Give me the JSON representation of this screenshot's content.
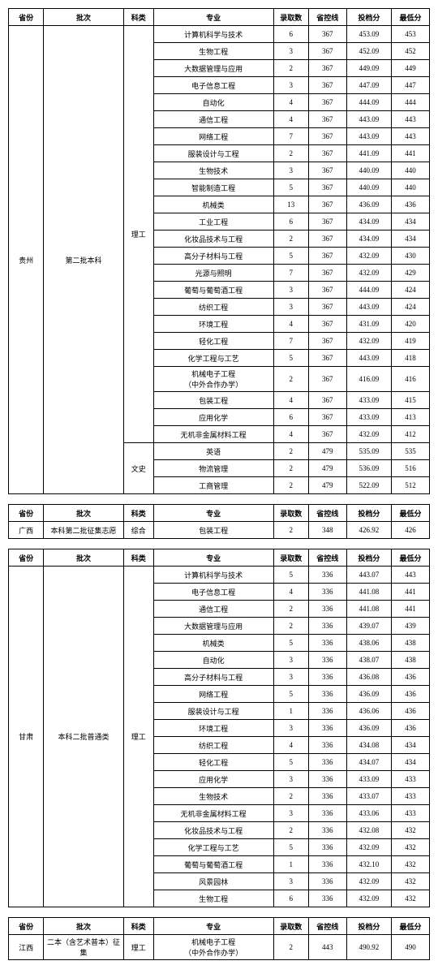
{
  "headers": [
    "省份",
    "批次",
    "科类",
    "专业",
    "录取数",
    "省控线",
    "投档分",
    "最低分"
  ],
  "tables": [
    {
      "province": "贵州",
      "batch": "第二批本科",
      "groups": [
        {
          "type": "理工",
          "rows": [
            [
              "计算机科学与技术",
              "6",
              "367",
              "453.09",
              "453"
            ],
            [
              "生物工程",
              "3",
              "367",
              "452.09",
              "452"
            ],
            [
              "大数据管理与应用",
              "2",
              "367",
              "449.09",
              "449"
            ],
            [
              "电子信息工程",
              "3",
              "367",
              "447.09",
              "447"
            ],
            [
              "自动化",
              "4",
              "367",
              "444.09",
              "444"
            ],
            [
              "通信工程",
              "4",
              "367",
              "443.09",
              "443"
            ],
            [
              "网络工程",
              "7",
              "367",
              "443.09",
              "443"
            ],
            [
              "服装设计与工程",
              "2",
              "367",
              "441.09",
              "441"
            ],
            [
              "生物技术",
              "3",
              "367",
              "440.09",
              "440"
            ],
            [
              "智能制造工程",
              "5",
              "367",
              "440.09",
              "440"
            ],
            [
              "机械类",
              "13",
              "367",
              "436.09",
              "436"
            ],
            [
              "工业工程",
              "6",
              "367",
              "434.09",
              "434"
            ],
            [
              "化妆品技术与工程",
              "2",
              "367",
              "434.09",
              "434"
            ],
            [
              "高分子材料与工程",
              "5",
              "367",
              "432.09",
              "430"
            ],
            [
              "光源与照明",
              "7",
              "367",
              "432.09",
              "429"
            ],
            [
              "葡萄与葡萄酒工程",
              "3",
              "367",
              "444.09",
              "424"
            ],
            [
              "纺织工程",
              "3",
              "367",
              "443.09",
              "424"
            ],
            [
              "环境工程",
              "4",
              "367",
              "431.09",
              "420"
            ],
            [
              "轻化工程",
              "7",
              "367",
              "432.09",
              "419"
            ],
            [
              "化学工程与工艺",
              "5",
              "367",
              "443.09",
              "418"
            ],
            [
              "机械电子工程\n（中外合作办学）",
              "2",
              "367",
              "416.09",
              "416"
            ],
            [
              "包装工程",
              "4",
              "367",
              "433.09",
              "415"
            ],
            [
              "应用化学",
              "6",
              "367",
              "433.09",
              "413"
            ],
            [
              "无机非金属材料工程",
              "4",
              "367",
              "432.09",
              "412"
            ]
          ]
        },
        {
          "type": "文史",
          "rows": [
            [
              "英语",
              "2",
              "479",
              "535.09",
              "535"
            ],
            [
              "物流管理",
              "2",
              "479",
              "536.09",
              "516"
            ],
            [
              "工商管理",
              "2",
              "479",
              "522.09",
              "512"
            ]
          ]
        }
      ]
    },
    {
      "province": "广西",
      "batch": "本科第二批征集志愿",
      "groups": [
        {
          "type": "综合",
          "rows": [
            [
              "包装工程",
              "2",
              "348",
              "426.92",
              "426"
            ]
          ]
        }
      ]
    },
    {
      "province": "甘肃",
      "batch": "本科二批普通类",
      "groups": [
        {
          "type": "理工",
          "rows": [
            [
              "计算机科学与技术",
              "5",
              "336",
              "443.07",
              "443"
            ],
            [
              "电子信息工程",
              "4",
              "336",
              "441.08",
              "441"
            ],
            [
              "通信工程",
              "2",
              "336",
              "441.08",
              "441"
            ],
            [
              "大数据管理与应用",
              "2",
              "336",
              "439.07",
              "439"
            ],
            [
              "机械类",
              "5",
              "336",
              "438.06",
              "438"
            ],
            [
              "自动化",
              "3",
              "336",
              "438.07",
              "438"
            ],
            [
              "高分子材料与工程",
              "3",
              "336",
              "436.08",
              "436"
            ],
            [
              "网络工程",
              "5",
              "336",
              "436.09",
              "436"
            ],
            [
              "服装设计与工程",
              "1",
              "336",
              "436.06",
              "436"
            ],
            [
              "环境工程",
              "3",
              "336",
              "436.09",
              "436"
            ],
            [
              "纺织工程",
              "4",
              "336",
              "434.08",
              "434"
            ],
            [
              "轻化工程",
              "5",
              "336",
              "434.07",
              "434"
            ],
            [
              "应用化学",
              "3",
              "336",
              "433.09",
              "433"
            ],
            [
              "生物技术",
              "2",
              "336",
              "433.07",
              "433"
            ],
            [
              "无机非金属材料工程",
              "3",
              "336",
              "433.06",
              "433"
            ],
            [
              "化妆品技术与工程",
              "2",
              "336",
              "432.08",
              "432"
            ],
            [
              "化学工程与工艺",
              "5",
              "336",
              "432.09",
              "432"
            ],
            [
              "葡萄与葡萄酒工程",
              "1",
              "336",
              "432.10",
              "432"
            ],
            [
              "风景园林",
              "3",
              "336",
              "432.09",
              "432"
            ],
            [
              "生物工程",
              "6",
              "336",
              "432.09",
              "432"
            ]
          ]
        }
      ]
    },
    {
      "province": "江西",
      "batch": "二本（含艺术普本）征集",
      "groups": [
        {
          "type": "理工",
          "rows": [
            [
              "机械电子工程\n（中外合作办学）",
              "2",
              "443",
              "490.92",
              "490"
            ]
          ]
        }
      ]
    }
  ]
}
